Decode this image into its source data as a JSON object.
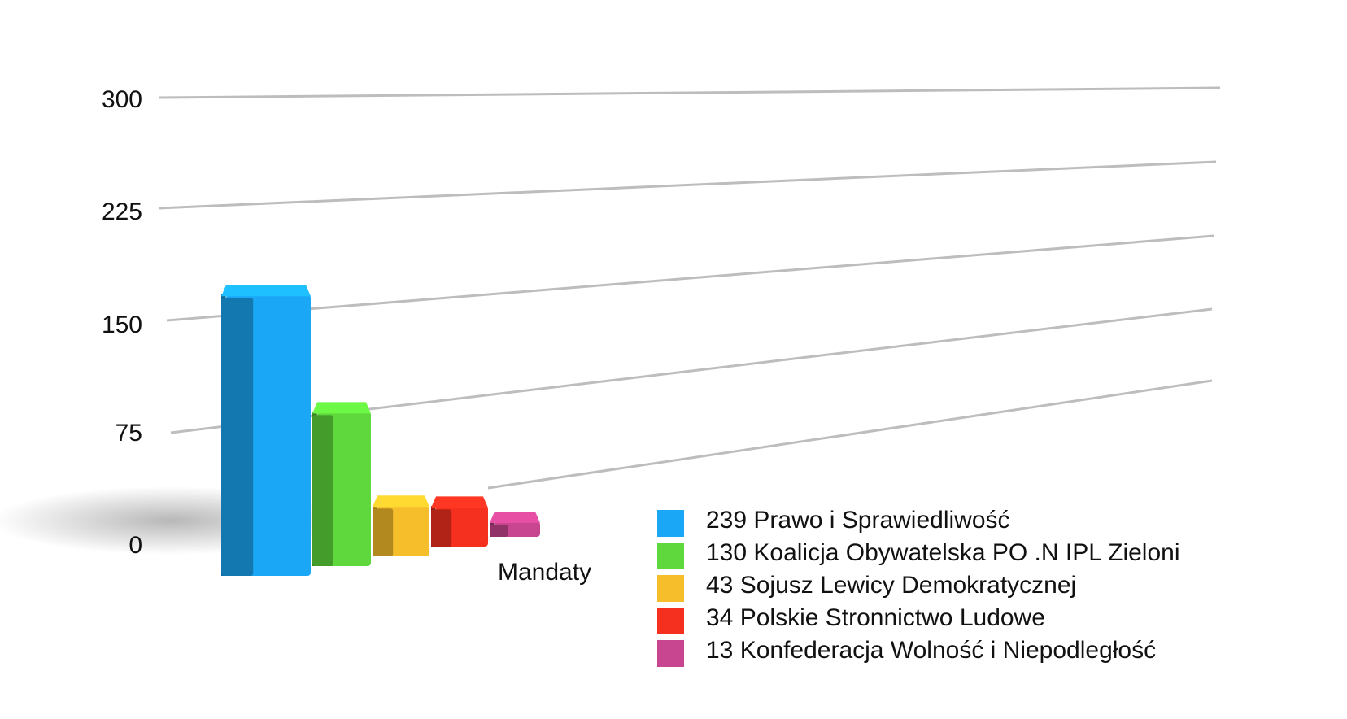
{
  "chart_data": {
    "type": "bar",
    "categories": [
      "Mandaty"
    ],
    "series": [
      {
        "name": "239 Prawo i Sprawiedliwość",
        "value": 239,
        "color": "#1aa7f5"
      },
      {
        "name": "130 Koalicja Obywatelska PO .N IPL Zieloni",
        "value": 130,
        "color": "#5ed83c"
      },
      {
        "name": "43 Sojusz Lewicy Demokratycznej",
        "value": 43,
        "color": "#f6be2b"
      },
      {
        "name": "34 Polskie Stronnictwo Ludowe",
        "value": 34,
        "color": "#f5301e"
      },
      {
        "name": "13 Konfederacja Wolność i Niepodległość",
        "value": 13,
        "color": "#c8458f"
      }
    ],
    "yticks": [
      "0",
      "75",
      "150",
      "225",
      "300"
    ],
    "ylim": [
      0,
      300
    ],
    "grid": true,
    "legend": "bottom-right",
    "three_d": true
  }
}
